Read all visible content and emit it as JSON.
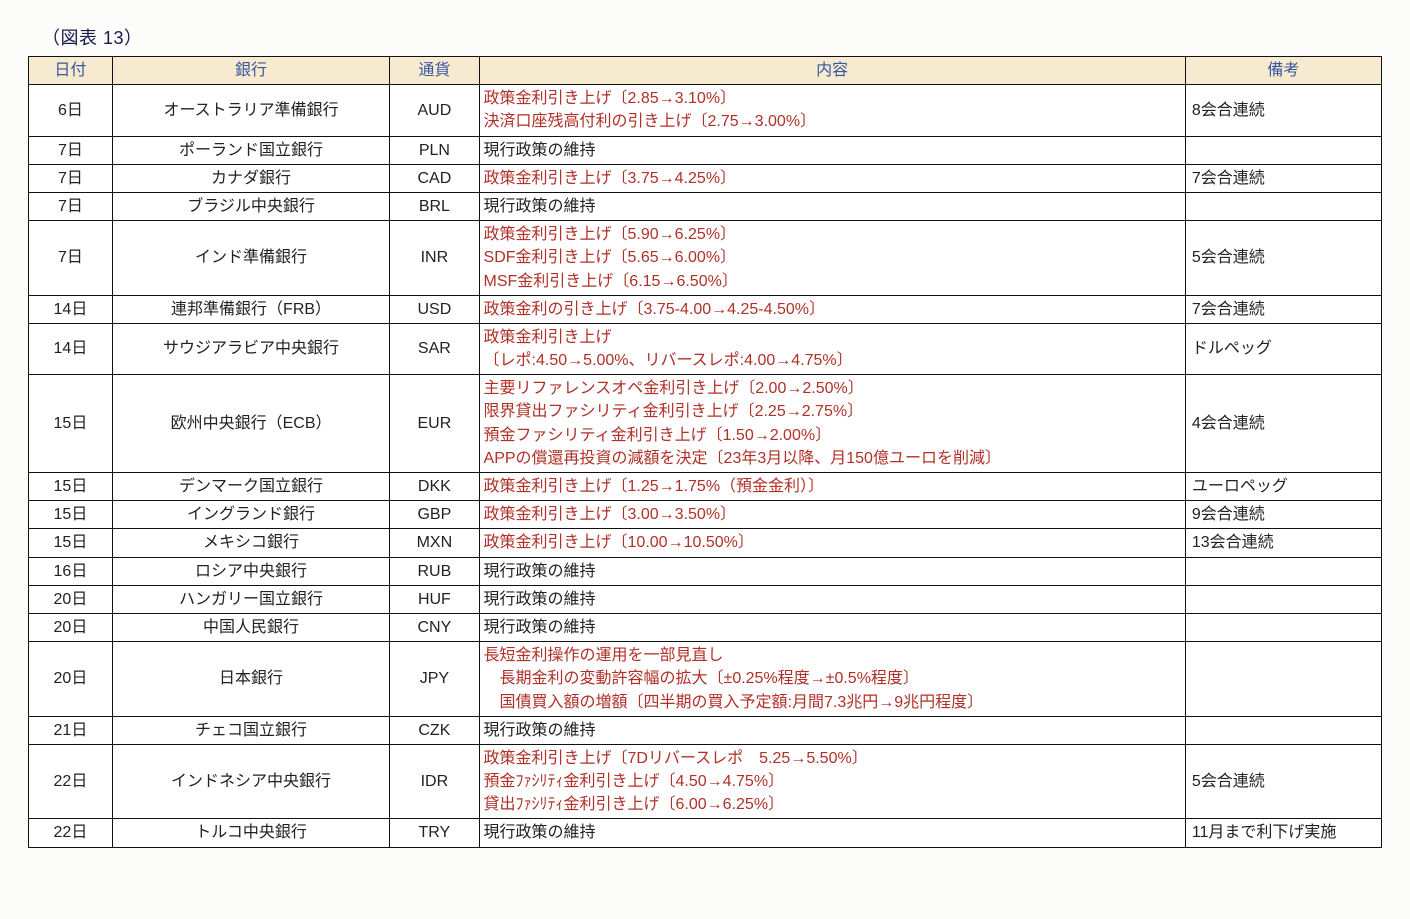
{
  "caption": "（図表 13）",
  "colors": {
    "header_bg": "#f6ebd0",
    "header_text": "#3a56a0",
    "border": "#111111",
    "text": "#222222",
    "highlight": "#b03028",
    "page_bg": "#fcfcfa"
  },
  "typography": {
    "font_family": "Meiryo / MS PGothic",
    "header_fontsize_pt": 12,
    "cell_fontsize_pt": 12,
    "caption_fontsize_pt": 13
  },
  "column_widths_pct": {
    "date": 6.2,
    "bank": 20.5,
    "currency": 6.6,
    "content": 52.2,
    "notes": 14.5
  },
  "columns": [
    "日付",
    "銀行",
    "通貨",
    "内容",
    "備考"
  ],
  "rows": [
    {
      "date": "6日",
      "bank": "オーストラリア準備銀行",
      "currency": "AUD",
      "content": [
        {
          "text": "政策金利引き上げ〔2.85→3.10%〕",
          "color": "red"
        },
        {
          "text": "決済口座残高付利の引き上げ〔2.75→3.00%〕",
          "color": "red"
        }
      ],
      "notes": "8会合連続"
    },
    {
      "date": "7日",
      "bank": "ポーランド国立銀行",
      "currency": "PLN",
      "content": [
        {
          "text": "現行政策の維持",
          "color": "black"
        }
      ],
      "notes": ""
    },
    {
      "date": "7日",
      "bank": "カナダ銀行",
      "currency": "CAD",
      "content": [
        {
          "text": "政策金利引き上げ〔3.75→4.25%〕",
          "color": "red"
        }
      ],
      "notes": "7会合連続"
    },
    {
      "date": "7日",
      "bank": "ブラジル中央銀行",
      "currency": "BRL",
      "content": [
        {
          "text": "現行政策の維持",
          "color": "black"
        }
      ],
      "notes": ""
    },
    {
      "date": "7日",
      "bank": "インド準備銀行",
      "currency": "INR",
      "content": [
        {
          "text": "政策金利引き上げ〔5.90→6.25%〕",
          "color": "red"
        },
        {
          "text": "SDF金利引き上げ〔5.65→6.00%〕",
          "color": "red"
        },
        {
          "text": "MSF金利引き上げ〔6.15→6.50%〕",
          "color": "red"
        }
      ],
      "notes": "5会合連続"
    },
    {
      "date": "14日",
      "bank": "連邦準備銀行（FRB）",
      "currency": "USD",
      "content": [
        {
          "text": "政策金利の引き上げ〔3.75-4.00→4.25-4.50%〕",
          "color": "red"
        }
      ],
      "notes": "7会合連続"
    },
    {
      "date": "14日",
      "bank": "サウジアラビア中央銀行",
      "currency": "SAR",
      "content": [
        {
          "text": "政策金利引き上げ",
          "color": "red"
        },
        {
          "text": "〔レポ:4.50→5.00%、リバースレポ:4.00→4.75%〕",
          "color": "red"
        }
      ],
      "notes": "ドルペッグ"
    },
    {
      "date": "15日",
      "bank": "欧州中央銀行（ECB）",
      "currency": "EUR",
      "content": [
        {
          "text": "主要リファレンスオペ金利引き上げ〔2.00→2.50%〕",
          "color": "red"
        },
        {
          "text": "限界貸出ファシリティ金利引き上げ〔2.25→2.75%〕",
          "color": "red"
        },
        {
          "text": "預金ファシリティ金利引き上げ〔1.50→2.00%〕",
          "color": "red"
        },
        {
          "text": "APPの償還再投資の減額を決定〔23年3月以降、月150億ユーロを削減〕",
          "color": "red"
        }
      ],
      "notes": "4会合連続"
    },
    {
      "date": "15日",
      "bank": "デンマーク国立銀行",
      "currency": "DKK",
      "content": [
        {
          "text": "政策金利引き上げ〔1.25→1.75%（預金金利）〕",
          "color": "red"
        }
      ],
      "notes": "ユーロペッグ"
    },
    {
      "date": "15日",
      "bank": "イングランド銀行",
      "currency": "GBP",
      "content": [
        {
          "text": "政策金利引き上げ〔3.00→3.50%〕",
          "color": "red"
        }
      ],
      "notes": "9会合連続"
    },
    {
      "date": "15日",
      "bank": "メキシコ銀行",
      "currency": "MXN",
      "content": [
        {
          "text": "政策金利引き上げ〔10.00→10.50%〕",
          "color": "red"
        }
      ],
      "notes": "13会合連続"
    },
    {
      "date": "16日",
      "bank": "ロシア中央銀行",
      "currency": "RUB",
      "content": [
        {
          "text": "現行政策の維持",
          "color": "black"
        }
      ],
      "notes": ""
    },
    {
      "date": "20日",
      "bank": "ハンガリー国立銀行",
      "currency": "HUF",
      "content": [
        {
          "text": "現行政策の維持",
          "color": "black"
        }
      ],
      "notes": ""
    },
    {
      "date": "20日",
      "bank": "中国人民銀行",
      "currency": "CNY",
      "content": [
        {
          "text": "現行政策の維持",
          "color": "black"
        }
      ],
      "notes": ""
    },
    {
      "date": "20日",
      "bank": "日本銀行",
      "currency": "JPY",
      "content": [
        {
          "text": "長短金利操作の運用を一部見直し",
          "color": "red"
        },
        {
          "text": "　長期金利の変動許容幅の拡大〔±0.25%程度→±0.5%程度〕",
          "color": "red"
        },
        {
          "text": "　国債買入額の増額〔四半期の買入予定額:月間7.3兆円→9兆円程度〕",
          "color": "red"
        }
      ],
      "notes": ""
    },
    {
      "date": "21日",
      "bank": "チェコ国立銀行",
      "currency": "CZK",
      "content": [
        {
          "text": "現行政策の維持",
          "color": "black"
        }
      ],
      "notes": ""
    },
    {
      "date": "22日",
      "bank": "インドネシア中央銀行",
      "currency": "IDR",
      "content": [
        {
          "text": "政策金利引き上げ〔7Dリバースレポ　5.25→5.50%〕",
          "color": "red"
        },
        {
          "text": "預金ﾌｧｼﾘﾃｨ金利引き上げ〔4.50→4.75%〕",
          "color": "red"
        },
        {
          "text": "貸出ﾌｧｼﾘﾃｨ金利引き上げ〔6.00→6.25%〕",
          "color": "red"
        }
      ],
      "notes": "5会合連続"
    },
    {
      "date": "22日",
      "bank": "トルコ中央銀行",
      "currency": "TRY",
      "content": [
        {
          "text": "現行政策の維持",
          "color": "black"
        }
      ],
      "notes": "11月まで利下げ実施"
    }
  ]
}
